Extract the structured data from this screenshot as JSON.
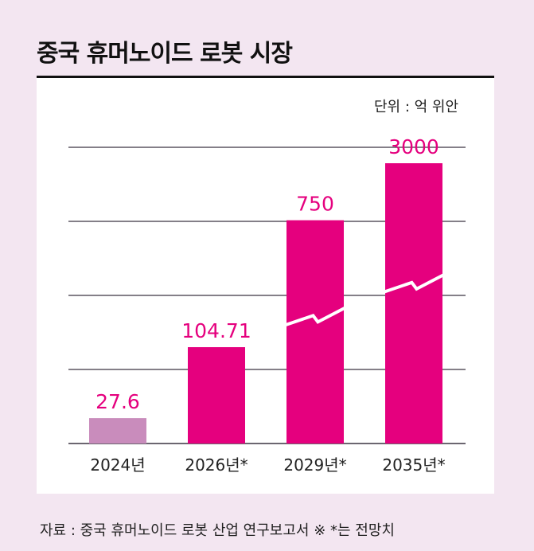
{
  "title": "중국 휴머노이드 로봇 시장",
  "unit_label": "단위 : 억 위안",
  "source": "자료 : 중국 휴머노이드 로봇 산업 연구보고서 ※ *는 전망치",
  "colors": {
    "bar_actual": "#c98cbc",
    "bar_forecast": "#e5007e",
    "value_label": "#e5007e",
    "gridline": "#3a3340"
  },
  "chart_data": {
    "type": "bar",
    "title": "중국 휴머노이드 로봇 시장",
    "ylabel": "단위 : 억 위안",
    "xlabel": "",
    "categories": [
      "2024년",
      "2026년*",
      "2029년*",
      "2035년*"
    ],
    "values": [
      27.6,
      104.71,
      750,
      3000
    ],
    "value_labels": [
      "27.6",
      "104.71",
      "750",
      "3000"
    ],
    "forecast": [
      false,
      true,
      true,
      true
    ],
    "axis_break": [
      false,
      false,
      true,
      true
    ],
    "grid": true,
    "legend": "none"
  }
}
